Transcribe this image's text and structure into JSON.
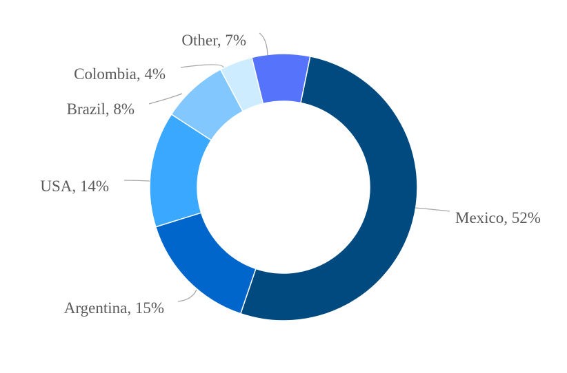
{
  "chart_data": {
    "type": "pie",
    "donut": true,
    "title": "",
    "legend": "none",
    "slices": [
      {
        "name": "Mexico",
        "value": 52,
        "label": "Mexico, 52%",
        "color": "#004a80"
      },
      {
        "name": "Argentina",
        "value": 15,
        "label": "Argentina, 15%",
        "color": "#0066cc"
      },
      {
        "name": "USA",
        "value": 14,
        "label": "USA, 14%",
        "color": "#3ba8ff"
      },
      {
        "name": "Brazil",
        "value": 8,
        "label": "Brazil, 8%",
        "color": "#82c8ff"
      },
      {
        "name": "Colombia",
        "value": 4,
        "label": "Colombia, 4%",
        "color": "#cdecff"
      },
      {
        "name": "Other",
        "value": 7,
        "label": "Other, 7%",
        "color": "#5573fb"
      }
    ]
  }
}
